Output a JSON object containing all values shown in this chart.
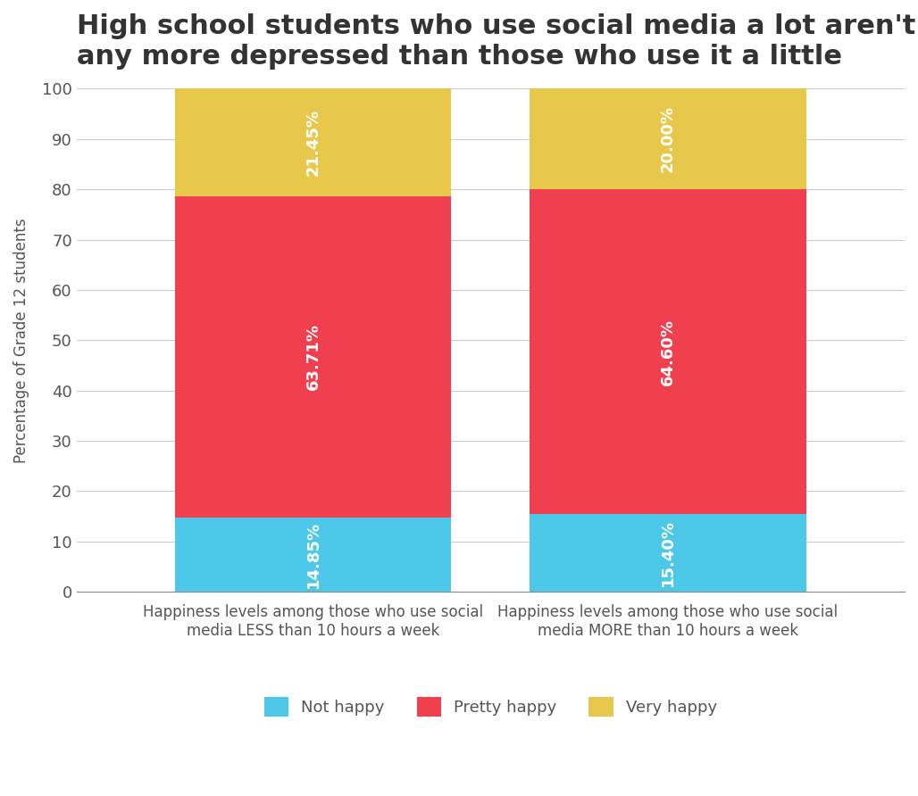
{
  "title": "High school students who use social media a lot aren't\nany more depressed than those who use it a little",
  "ylabel": "Percentage of Grade 12 students",
  "categories": [
    "Happiness levels among those who use social\nmedia LESS than 10 hours a week",
    "Happiness levels among those who use social\nmedia MORE than 10 hours a week"
  ],
  "segments": {
    "Not happy": [
      14.85,
      15.4
    ],
    "Pretty happy": [
      63.71,
      64.6
    ],
    "Very happy": [
      21.45,
      20.0
    ]
  },
  "colors": {
    "Not happy": "#4DC8E8",
    "Pretty happy": "#F04050",
    "Very happy": "#E8C84A"
  },
  "ylim": [
    0,
    100
  ],
  "yticks": [
    0,
    10,
    20,
    30,
    40,
    50,
    60,
    70,
    80,
    90,
    100
  ],
  "title_fontsize": 22,
  "label_fontsize": 12,
  "tick_fontsize": 13,
  "bar_width": 0.35,
  "background_color": "#ffffff"
}
